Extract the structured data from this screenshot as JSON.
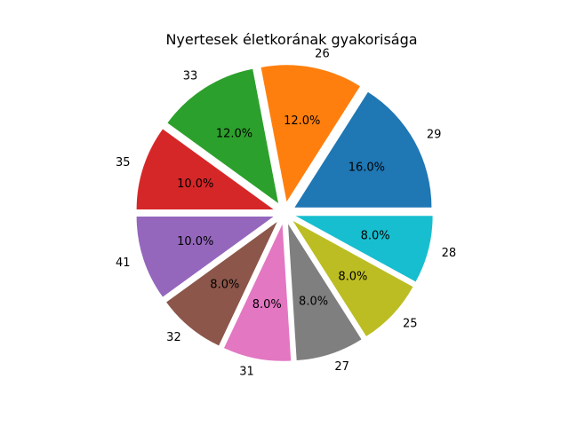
{
  "chart_data": {
    "type": "pie",
    "title": "Nyertesek életkorának gyakorisága",
    "categories": [
      "29",
      "26",
      "33",
      "35",
      "41",
      "32",
      "31",
      "27",
      "25",
      "28"
    ],
    "values": [
      16.0,
      12.0,
      12.0,
      10.0,
      10.0,
      8.0,
      8.0,
      8.0,
      8.0,
      8.0
    ],
    "percent_labels": [
      "16.0%",
      "12.0%",
      "12.0%",
      "10.0%",
      "10.0%",
      "8.0%",
      "8.0%",
      "8.0%",
      "8.0%",
      "8.0%"
    ],
    "colors": [
      "#1f77b4",
      "#ff7f0e",
      "#2ca02c",
      "#d62728",
      "#9467bd",
      "#8c564b",
      "#e377c2",
      "#7f7f7f",
      "#bcbd22",
      "#17becf"
    ],
    "exploded": true,
    "start_angle_deg": 0,
    "direction": "counterclockwise"
  }
}
